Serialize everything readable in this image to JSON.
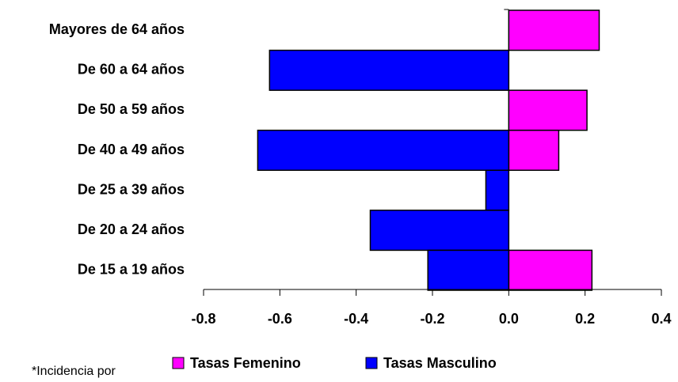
{
  "chart_data": {
    "type": "bar",
    "orientation": "horizontal",
    "categories": [
      "Mayores de 64 años",
      "De 60 a 64 años",
      "De 50 a 59 años",
      "De 40 a 49 años",
      "De 25 a 39 años",
      "De 20 a 24 años",
      "De 15 a 19 años"
    ],
    "series": [
      {
        "name": "Tasas Femenino",
        "color": "#ff00ff",
        "values": [
          0.237,
          null,
          0.205,
          0.131,
          null,
          null,
          0.218
        ]
      },
      {
        "name": "Tasas Masculino",
        "color": "#0000ff",
        "values": [
          null,
          -0.627,
          null,
          -0.658,
          -0.06,
          -0.363,
          -0.212
        ]
      }
    ],
    "xlim": [
      -0.8,
      0.4
    ],
    "xticks": [
      -0.8,
      -0.6,
      -0.4,
      -0.2,
      {
        "value": 0,
        "label": "0.0"
      },
      0.2,
      0.4
    ],
    "legend": "bottom",
    "note": "*Incidencia por"
  }
}
